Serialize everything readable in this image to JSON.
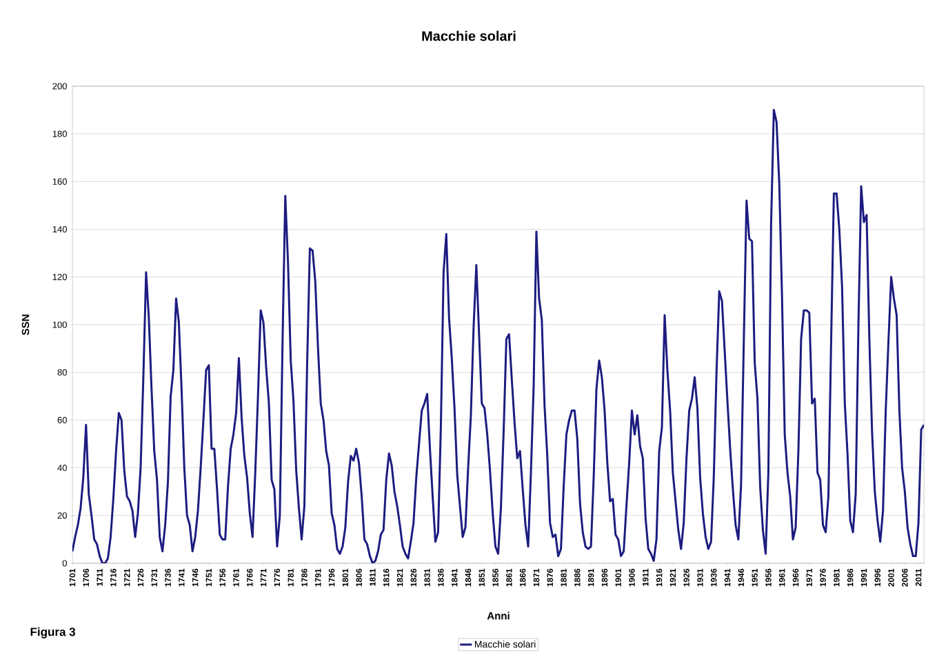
{
  "chart_data": {
    "type": "line",
    "title": "Macchie solari",
    "xlabel": "Anni",
    "ylabel": "SSN",
    "annotations": [
      "Figura 3"
    ],
    "categories": [
      "1701",
      null,
      null,
      null,
      null,
      "1706",
      null,
      null,
      null,
      null,
      "1711",
      null,
      null,
      null,
      null,
      "1716",
      null,
      null,
      null,
      null,
      "1721",
      null,
      null,
      null,
      null,
      "1726",
      null,
      null,
      null,
      null,
      "1731",
      null,
      null,
      null,
      null,
      "1736",
      null,
      null,
      null,
      null,
      "1741",
      null,
      null,
      null,
      null,
      "1746",
      null,
      null,
      null,
      null,
      "1751",
      null,
      null,
      null,
      null,
      "1756",
      null,
      null,
      null,
      null,
      "1761",
      null,
      null,
      null,
      null,
      "1766",
      null,
      null,
      null,
      null,
      "1771",
      null,
      null,
      null,
      null,
      "1776",
      null,
      null,
      null,
      null,
      "1781",
      null,
      null,
      null,
      null,
      "1786",
      null,
      null,
      null,
      null,
      "1791",
      null,
      null,
      null,
      null,
      "1796",
      null,
      null,
      null,
      null,
      "1801",
      null,
      null,
      null,
      null,
      "1806",
      null,
      null,
      null,
      null,
      "1811",
      null,
      null,
      null,
      null,
      "1816",
      null,
      null,
      null,
      null,
      "1821",
      null,
      null,
      null,
      null,
      "1826",
      null,
      null,
      null,
      null,
      "1831",
      null,
      null,
      null,
      null,
      "1836",
      null,
      null,
      null,
      null,
      "1841",
      null,
      null,
      null,
      null,
      "1846",
      null,
      null,
      null,
      null,
      "1851",
      null,
      null,
      null,
      null,
      "1856",
      null,
      null,
      null,
      null,
      "1861",
      null,
      null,
      null,
      null,
      "1866",
      null,
      null,
      null,
      null,
      "1871",
      null,
      null,
      null,
      null,
      "1876",
      null,
      null,
      null,
      null,
      "1881",
      null,
      null,
      null,
      null,
      "1886",
      null,
      null,
      null,
      null,
      "1891",
      null,
      null,
      null,
      null,
      "1896",
      null,
      null,
      null,
      null,
      "1901",
      null,
      null,
      null,
      null,
      "1906",
      null,
      null,
      null,
      null,
      "1911",
      null,
      null,
      null,
      null,
      "1916",
      null,
      null,
      null,
      null,
      "1921",
      null,
      null,
      null,
      null,
      "1926",
      null,
      null,
      null,
      null,
      "1931",
      null,
      null,
      null,
      null,
      "1936",
      null,
      null,
      null,
      null,
      "1941",
      null,
      null,
      null,
      null,
      "1946",
      null,
      null,
      null,
      null,
      "1951",
      null,
      null,
      null,
      null,
      "1956",
      null,
      null,
      null,
      null,
      "1961",
      null,
      null,
      null,
      null,
      "1966",
      null,
      null,
      null,
      null,
      "1971",
      null,
      null,
      null,
      null,
      "1976",
      null,
      null,
      null,
      null,
      "1981",
      null,
      null,
      null,
      null,
      "1986",
      null,
      null,
      null,
      null,
      "1991",
      null,
      null,
      null,
      null,
      "1996",
      null,
      null,
      null,
      null,
      "2001",
      null,
      null,
      null,
      null,
      "2006",
      null,
      null,
      null,
      null,
      "2011",
      null,
      null
    ],
    "series": [
      {
        "name": "Macchie solari",
        "color": "#1c1c80",
        "values": [
          5,
          11,
          16,
          23,
          36,
          58,
          29,
          20,
          10,
          8,
          3,
          0,
          0,
          2,
          11,
          27,
          47,
          63,
          60,
          39,
          28,
          26,
          22,
          11,
          21,
          40,
          78,
          122,
          103,
          73,
          47,
          35,
          11,
          5,
          16,
          34,
          70,
          81,
          111,
          101,
          73,
          40,
          20,
          16,
          5,
          11,
          22,
          40,
          60,
          81,
          83,
          48,
          48,
          31,
          12,
          10,
          10,
          32,
          48,
          54,
          63,
          86,
          61,
          45,
          36,
          21,
          11,
          38,
          70,
          106,
          101,
          82,
          67,
          35,
          31,
          7,
          20,
          93,
          154,
          126,
          85,
          68,
          39,
          23,
          10,
          24,
          83,
          132,
          131,
          118,
          90,
          67,
          60,
          47,
          41,
          21,
          16,
          6,
          4,
          7,
          15,
          34,
          45,
          43,
          48,
          42,
          28,
          10,
          8,
          3,
          0,
          1,
          5,
          12,
          14,
          35,
          46,
          41,
          30,
          24,
          16,
          7,
          4,
          2,
          9,
          17,
          36,
          50,
          64,
          67,
          71,
          48,
          28,
          9,
          13,
          57,
          122,
          138,
          103,
          86,
          65,
          37,
          24,
          11,
          15,
          40,
          62,
          99,
          125,
          96,
          67,
          65,
          54,
          39,
          21,
          7,
          4,
          23,
          55,
          94,
          96,
          77,
          59,
          44,
          47,
          31,
          16,
          7,
          38,
          74,
          139,
          111,
          102,
          66,
          45,
          17,
          11,
          12,
          3,
          6,
          32,
          54,
          60,
          64,
          64,
          52,
          25,
          13,
          7,
          6,
          7,
          36,
          73,
          85,
          78,
          64,
          42,
          26,
          27,
          12,
          10,
          3,
          5,
          24,
          42,
          64,
          54,
          62,
          49,
          44,
          19,
          6,
          4,
          1,
          10,
          47,
          57,
          104,
          81,
          64,
          38,
          26,
          14,
          6,
          17,
          44,
          64,
          69,
          78,
          65,
          36,
          21,
          11,
          6,
          9,
          36,
          80,
          114,
          110,
          89,
          68,
          48,
          31,
          16,
          10,
          33,
          93,
          152,
          136,
          135,
          84,
          69,
          32,
          14,
          4,
          38,
          142,
          190,
          185,
          159,
          112,
          54,
          38,
          28,
          10,
          15,
          47,
          94,
          106,
          106,
          105,
          67,
          69,
          38,
          35,
          16,
          13,
          28,
          93,
          155,
          155,
          140,
          116,
          67,
          46,
          18,
          13,
          29,
          100,
          158,
          143,
          146,
          94,
          55,
          30,
          18,
          9,
          22,
          64,
          93,
          120,
          111,
          104,
          64,
          40,
          30,
          15,
          8,
          3,
          3,
          17,
          56,
          58
        ]
      }
    ],
    "ylim": [
      0,
      200
    ],
    "yticks": [
      0,
      20,
      40,
      60,
      80,
      100,
      120,
      140,
      160,
      180,
      200
    ],
    "grid": "y",
    "legend": "bottom",
    "marker": "none",
    "line_style": "solid"
  }
}
